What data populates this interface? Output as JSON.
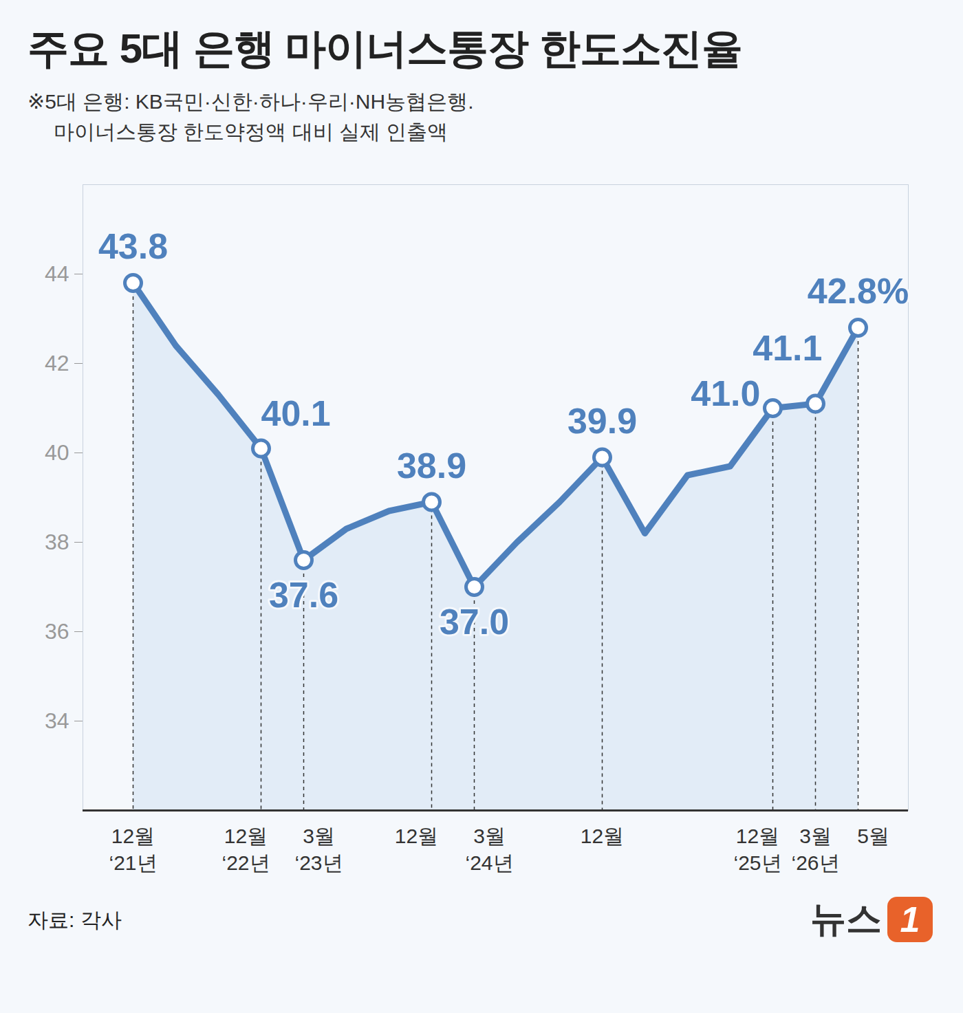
{
  "chart_data": {
    "type": "line",
    "title": "주요 5대 은행 마이너스통장 한도소진율",
    "subtitle": [
      "※5대 은행: KB국민·신한·하나·우리·NH농협은행.",
      "마이너스통장 한도약정액 대비 실제 인출액"
    ],
    "source": "자료: 각사",
    "logo": {
      "text": "뉴스",
      "mark": "1"
    },
    "categories": [
      "12월\n‘21년",
      null,
      null,
      "12월\n‘22년",
      "3월\n‘23년",
      null,
      null,
      "12월",
      "3월\n‘24년",
      null,
      null,
      "12월",
      null,
      null,
      null,
      "12월\n‘25년",
      "3월\n‘26년",
      "5월"
    ],
    "values": [
      43.8,
      42.4,
      41.3,
      40.1,
      37.6,
      38.3,
      38.7,
      38.9,
      37.0,
      38.0,
      38.9,
      39.9,
      38.2,
      39.5,
      39.7,
      41.0,
      41.1,
      42.8
    ],
    "value_labels": [
      "43.8",
      null,
      null,
      "40.1",
      "37.6",
      null,
      null,
      "38.9",
      "37.0",
      null,
      null,
      "39.9",
      null,
      null,
      null,
      "41.0",
      "41.1",
      "42.8%"
    ],
    "data_labels": true,
    "color": "#4f81bd",
    "ylim": [
      32,
      46
    ],
    "yticks": [
      34,
      36,
      38,
      40,
      42,
      44
    ],
    "grid": false
  }
}
